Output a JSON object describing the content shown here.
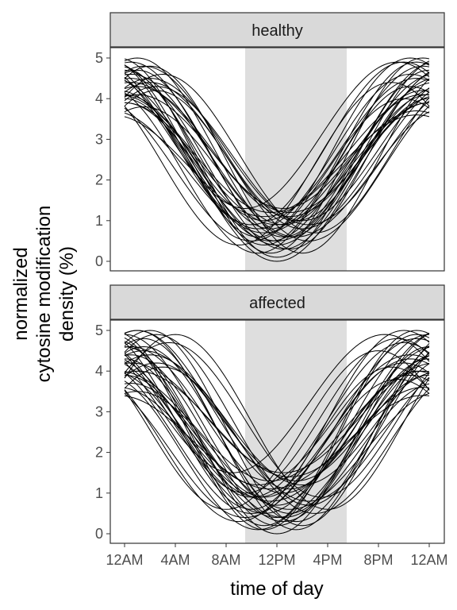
{
  "chart_data": {
    "type": "line",
    "xlabel": "time of day",
    "ylabel_lines": [
      "normalized",
      "cytosine modification",
      "density (%)"
    ],
    "x_ticks": [
      "12AM",
      "4AM",
      "8AM",
      "12PM",
      "4PM",
      "8PM",
      "12AM"
    ],
    "y_ticks": [
      "0",
      "1",
      "2",
      "3",
      "4",
      "5"
    ],
    "ylim": [
      0,
      5
    ],
    "shaded_interval_hours": [
      9.5,
      17.5
    ],
    "x_range_hours": [
      0,
      24
    ],
    "curve_model": "y = mid + amp*cos(2*pi*(hour - trough_hour)/24 + pi), evaluated on hours 0-24",
    "panels": [
      {
        "label": "healthy",
        "series": [
          {
            "trough_hour": 11.0,
            "min": 0.4,
            "max": 4.9
          },
          {
            "trough_hour": 12.5,
            "min": 0.9,
            "max": 4.6
          },
          {
            "trough_hour": 10.5,
            "min": 0.2,
            "max": 4.3
          },
          {
            "trough_hour": 13.0,
            "min": 0.6,
            "max": 5.0
          },
          {
            "trough_hour": 11.5,
            "min": 1.2,
            "max": 4.1
          },
          {
            "trough_hour": 12.0,
            "min": 0.1,
            "max": 4.7
          },
          {
            "trough_hour": 14.0,
            "min": 0.8,
            "max": 4.4
          },
          {
            "trough_hour": 10.0,
            "min": 0.5,
            "max": 4.0
          },
          {
            "trough_hour": 13.5,
            "min": 1.0,
            "max": 4.8
          },
          {
            "trough_hour": 11.0,
            "min": 0.7,
            "max": 3.7
          },
          {
            "trough_hour": 12.5,
            "min": 0.3,
            "max": 4.5
          },
          {
            "trough_hour": 9.5,
            "min": 1.3,
            "max": 4.9
          },
          {
            "trough_hour": 14.5,
            "min": 0.5,
            "max": 4.2
          },
          {
            "trough_hour": 12.0,
            "min": 0.9,
            "max": 3.9
          },
          {
            "trough_hour": 11.5,
            "min": 0.2,
            "max": 5.0
          },
          {
            "trough_hour": 13.0,
            "min": 1.1,
            "max": 4.3
          },
          {
            "trough_hour": 10.5,
            "min": 0.8,
            "max": 4.6
          },
          {
            "trough_hour": 12.0,
            "min": 0.4,
            "max": 4.1
          },
          {
            "trough_hour": 14.0,
            "min": 0.2,
            "max": 4.8
          },
          {
            "trough_hour": 11.0,
            "min": 1.0,
            "max": 4.5
          },
          {
            "trough_hour": 13.5,
            "min": 0.6,
            "max": 3.8
          },
          {
            "trough_hour": 10.0,
            "min": 0.9,
            "max": 4.9
          },
          {
            "trough_hour": 12.5,
            "min": 1.3,
            "max": 4.4
          },
          {
            "trough_hour": 11.5,
            "min": 0.5,
            "max": 4.2
          },
          {
            "trough_hour": 15.0,
            "min": 0.7,
            "max": 4.6
          },
          {
            "trough_hour": 12.0,
            "min": 0.0,
            "max": 4.0
          },
          {
            "trough_hour": 10.5,
            "min": 0.6,
            "max": 5.0
          },
          {
            "trough_hour": 13.0,
            "min": 0.3,
            "max": 4.7
          },
          {
            "trough_hour": 11.0,
            "min": 1.1,
            "max": 3.6
          },
          {
            "trough_hour": 14.5,
            "min": 0.9,
            "max": 4.3
          },
          {
            "trough_hour": 12.5,
            "min": 0.6,
            "max": 4.9
          },
          {
            "trough_hour": 9.0,
            "min": 0.4,
            "max": 4.4
          },
          {
            "trough_hour": 13.0,
            "min": 1.2,
            "max": 4.1
          },
          {
            "trough_hour": 11.5,
            "min": 0.8,
            "max": 4.8
          },
          {
            "trough_hour": 12.0,
            "min": 0.5,
            "max": 3.9
          },
          {
            "trough_hour": 14.0,
            "min": 1.0,
            "max": 4.5
          }
        ]
      },
      {
        "label": "affected",
        "series": [
          {
            "trough_hour": 11.0,
            "min": 0.2,
            "max": 5.0
          },
          {
            "trough_hour": 12.5,
            "min": 1.0,
            "max": 4.6
          },
          {
            "trough_hour": 10.0,
            "min": 0.5,
            "max": 4.2
          },
          {
            "trough_hour": 13.5,
            "min": 0.1,
            "max": 4.8
          },
          {
            "trough_hour": 11.5,
            "min": 1.3,
            "max": 4.0
          },
          {
            "trough_hour": 12.0,
            "min": 0.0,
            "max": 4.6
          },
          {
            "trough_hour": 14.5,
            "min": 0.7,
            "max": 4.9
          },
          {
            "trough_hour": 9.5,
            "min": 0.4,
            "max": 3.8
          },
          {
            "trough_hour": 13.0,
            "min": 1.1,
            "max": 5.0
          },
          {
            "trough_hour": 10.5,
            "min": 0.9,
            "max": 4.3
          },
          {
            "trough_hour": 12.5,
            "min": 0.3,
            "max": 4.4
          },
          {
            "trough_hour": 8.5,
            "min": 1.5,
            "max": 4.9
          },
          {
            "trough_hour": 15.0,
            "min": 0.5,
            "max": 4.1
          },
          {
            "trough_hour": 11.5,
            "min": 0.8,
            "max": 3.6
          },
          {
            "trough_hour": 11.0,
            "min": 0.1,
            "max": 4.9
          },
          {
            "trough_hour": 13.5,
            "min": 1.3,
            "max": 4.5
          },
          {
            "trough_hour": 10.0,
            "min": 0.9,
            "max": 4.7
          },
          {
            "trough_hour": 12.0,
            "min": 0.4,
            "max": 3.9
          },
          {
            "trough_hour": 14.0,
            "min": 0.2,
            "max": 5.0
          },
          {
            "trough_hour": 10.5,
            "min": 1.2,
            "max": 4.4
          },
          {
            "trough_hour": 13.0,
            "min": 0.6,
            "max": 3.5
          },
          {
            "trough_hour": 9.5,
            "min": 1.0,
            "max": 4.8
          },
          {
            "trough_hour": 12.5,
            "min": 1.5,
            "max": 4.2
          },
          {
            "trough_hour": 11.0,
            "min": 0.5,
            "max": 4.0
          },
          {
            "trough_hour": 15.5,
            "min": 0.9,
            "max": 4.7
          },
          {
            "trough_hour": 12.0,
            "min": 0.2,
            "max": 4.3
          },
          {
            "trough_hour": 10.0,
            "min": 0.6,
            "max": 5.0
          },
          {
            "trough_hour": 13.5,
            "min": 0.3,
            "max": 4.6
          },
          {
            "trough_hour": 11.5,
            "min": 1.1,
            "max": 3.4
          },
          {
            "trough_hour": 14.5,
            "min": 0.8,
            "max": 4.2
          },
          {
            "trough_hour": 12.0,
            "min": 0.7,
            "max": 4.9
          },
          {
            "trough_hour": 8.0,
            "min": 0.6,
            "max": 4.5
          },
          {
            "trough_hour": 13.0,
            "min": 1.4,
            "max": 4.0
          },
          {
            "trough_hour": 11.0,
            "min": 0.9,
            "max": 4.8
          },
          {
            "trough_hour": 12.5,
            "min": 0.4,
            "max": 3.7
          },
          {
            "trough_hour": 14.0,
            "min": 1.2,
            "max": 4.4
          },
          {
            "trough_hour": 9.0,
            "min": 0.3,
            "max": 4.1
          },
          {
            "trough_hour": 16.0,
            "min": 0.6,
            "max": 4.9
          },
          {
            "trough_hour": 10.5,
            "min": 0.1,
            "max": 3.9
          },
          {
            "trough_hour": 13.0,
            "min": 0.5,
            "max": 5.0
          }
        ]
      }
    ]
  }
}
